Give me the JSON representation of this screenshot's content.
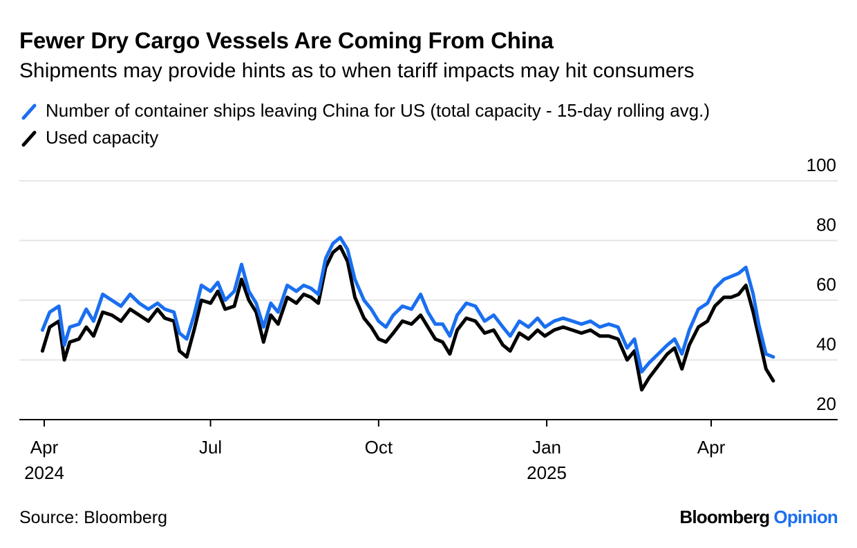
{
  "chart_data": {
    "type": "line",
    "title": "Fewer Dry Cargo Vessels Are Coming From China",
    "subtitle": "Shipments may provide hints as to when tariff impacts may hit consumers",
    "xlabel": "",
    "ylabel": "",
    "ylim": [
      20,
      100
    ],
    "yticks": [
      "100",
      "80",
      "60",
      "40",
      "20"
    ],
    "xticks": [
      {
        "label": "Apr",
        "year": "2024",
        "date": "2024-04-01"
      },
      {
        "label": "Jul",
        "year": "",
        "date": "2024-07-01"
      },
      {
        "label": "Oct",
        "year": "",
        "date": "2024-10-01"
      },
      {
        "label": "Jan",
        "year": "2025",
        "date": "2025-01-01"
      },
      {
        "label": "Apr",
        "year": "",
        "date": "2025-04-01"
      }
    ],
    "grid": true,
    "legend_position": "top-left",
    "series": [
      {
        "name": "Number of container ships leaving China for US (total capacity - 15-day rolling avg.)",
        "color": "#1a6ff0",
        "points": [
          [
            "2024-03-31",
            50
          ],
          [
            "2024-04-04",
            56
          ],
          [
            "2024-04-09",
            58
          ],
          [
            "2024-04-12",
            45
          ],
          [
            "2024-04-15",
            51
          ],
          [
            "2024-04-20",
            52
          ],
          [
            "2024-04-24",
            57
          ],
          [
            "2024-04-28",
            53
          ],
          [
            "2024-05-03",
            62
          ],
          [
            "2024-05-08",
            60
          ],
          [
            "2024-05-13",
            58
          ],
          [
            "2024-05-18",
            62
          ],
          [
            "2024-05-23",
            59
          ],
          [
            "2024-05-28",
            57
          ],
          [
            "2024-06-02",
            59
          ],
          [
            "2024-06-06",
            57
          ],
          [
            "2024-06-11",
            56
          ],
          [
            "2024-06-14",
            49
          ],
          [
            "2024-06-18",
            47
          ],
          [
            "2024-06-22",
            55
          ],
          [
            "2024-06-26",
            65
          ],
          [
            "2024-07-01",
            63
          ],
          [
            "2024-07-05",
            66
          ],
          [
            "2024-07-09",
            60
          ],
          [
            "2024-07-14",
            63
          ],
          [
            "2024-07-18",
            72
          ],
          [
            "2024-07-22",
            63
          ],
          [
            "2024-07-26",
            59
          ],
          [
            "2024-07-30",
            51
          ],
          [
            "2024-08-03",
            59
          ],
          [
            "2024-08-07",
            56
          ],
          [
            "2024-08-12",
            65
          ],
          [
            "2024-08-17",
            63
          ],
          [
            "2024-08-21",
            65
          ],
          [
            "2024-08-25",
            64
          ],
          [
            "2024-08-29",
            62
          ],
          [
            "2024-09-02",
            74
          ],
          [
            "2024-09-06",
            79
          ],
          [
            "2024-09-10",
            81
          ],
          [
            "2024-09-14",
            77
          ],
          [
            "2024-09-18",
            67
          ],
          [
            "2024-09-23",
            60
          ],
          [
            "2024-09-27",
            57
          ],
          [
            "2024-10-01",
            53
          ],
          [
            "2024-10-05",
            51
          ],
          [
            "2024-10-09",
            55
          ],
          [
            "2024-10-14",
            58
          ],
          [
            "2024-10-19",
            57
          ],
          [
            "2024-10-24",
            62
          ],
          [
            "2024-10-28",
            56
          ],
          [
            "2024-11-01",
            52
          ],
          [
            "2024-11-05",
            52
          ],
          [
            "2024-11-09",
            48
          ],
          [
            "2024-11-13",
            55
          ],
          [
            "2024-11-18",
            59
          ],
          [
            "2024-11-23",
            58
          ],
          [
            "2024-11-28",
            53
          ],
          [
            "2024-12-03",
            55
          ],
          [
            "2024-12-08",
            51
          ],
          [
            "2024-12-12",
            48
          ],
          [
            "2024-12-17",
            53
          ],
          [
            "2024-12-22",
            51
          ],
          [
            "2024-12-27",
            54
          ],
          [
            "2024-12-31",
            51
          ],
          [
            "2025-01-05",
            53
          ],
          [
            "2025-01-10",
            54
          ],
          [
            "2025-01-15",
            53
          ],
          [
            "2025-01-20",
            52
          ],
          [
            "2025-01-25",
            53
          ],
          [
            "2025-01-30",
            51
          ],
          [
            "2025-02-04",
            52
          ],
          [
            "2025-02-09",
            51
          ],
          [
            "2025-02-14",
            44
          ],
          [
            "2025-02-18",
            47
          ],
          [
            "2025-02-22",
            36
          ],
          [
            "2025-02-26",
            39
          ],
          [
            "2025-03-03",
            42
          ],
          [
            "2025-03-08",
            45
          ],
          [
            "2025-03-12",
            47
          ],
          [
            "2025-03-16",
            42
          ],
          [
            "2025-03-20",
            50
          ],
          [
            "2025-03-25",
            57
          ],
          [
            "2025-03-30",
            59
          ],
          [
            "2025-04-03",
            64
          ],
          [
            "2025-04-08",
            67
          ],
          [
            "2025-04-12",
            68
          ],
          [
            "2025-04-16",
            69
          ],
          [
            "2025-04-20",
            71
          ],
          [
            "2025-04-24",
            62
          ],
          [
            "2025-04-27",
            52
          ],
          [
            "2025-05-01",
            42
          ],
          [
            "2025-05-05",
            41
          ]
        ]
      },
      {
        "name": "Used capacity",
        "color": "#000000",
        "points": [
          [
            "2024-03-31",
            43
          ],
          [
            "2024-04-04",
            51
          ],
          [
            "2024-04-09",
            53
          ],
          [
            "2024-04-12",
            40
          ],
          [
            "2024-04-15",
            46
          ],
          [
            "2024-04-20",
            47
          ],
          [
            "2024-04-24",
            51
          ],
          [
            "2024-04-28",
            48
          ],
          [
            "2024-05-03",
            56
          ],
          [
            "2024-05-08",
            55
          ],
          [
            "2024-05-13",
            53
          ],
          [
            "2024-05-18",
            57
          ],
          [
            "2024-05-23",
            55
          ],
          [
            "2024-05-28",
            53
          ],
          [
            "2024-06-02",
            57
          ],
          [
            "2024-06-06",
            54
          ],
          [
            "2024-06-11",
            53
          ],
          [
            "2024-06-14",
            43
          ],
          [
            "2024-06-18",
            41
          ],
          [
            "2024-06-22",
            50
          ],
          [
            "2024-06-26",
            60
          ],
          [
            "2024-07-01",
            59
          ],
          [
            "2024-07-05",
            63
          ],
          [
            "2024-07-09",
            57
          ],
          [
            "2024-07-14",
            58
          ],
          [
            "2024-07-18",
            67
          ],
          [
            "2024-07-22",
            60
          ],
          [
            "2024-07-26",
            56
          ],
          [
            "2024-07-30",
            46
          ],
          [
            "2024-08-03",
            55
          ],
          [
            "2024-08-07",
            52
          ],
          [
            "2024-08-12",
            61
          ],
          [
            "2024-08-17",
            59
          ],
          [
            "2024-08-21",
            62
          ],
          [
            "2024-08-25",
            61
          ],
          [
            "2024-08-29",
            59
          ],
          [
            "2024-09-02",
            71
          ],
          [
            "2024-09-06",
            76
          ],
          [
            "2024-09-10",
            78
          ],
          [
            "2024-09-14",
            73
          ],
          [
            "2024-09-18",
            61
          ],
          [
            "2024-09-23",
            54
          ],
          [
            "2024-09-27",
            51
          ],
          [
            "2024-10-01",
            47
          ],
          [
            "2024-10-05",
            46
          ],
          [
            "2024-10-09",
            49
          ],
          [
            "2024-10-14",
            53
          ],
          [
            "2024-10-19",
            52
          ],
          [
            "2024-10-24",
            55
          ],
          [
            "2024-10-28",
            51
          ],
          [
            "2024-11-01",
            47
          ],
          [
            "2024-11-05",
            46
          ],
          [
            "2024-11-09",
            42
          ],
          [
            "2024-11-13",
            50
          ],
          [
            "2024-11-18",
            54
          ],
          [
            "2024-11-23",
            53
          ],
          [
            "2024-11-28",
            49
          ],
          [
            "2024-12-03",
            50
          ],
          [
            "2024-12-08",
            45
          ],
          [
            "2024-12-12",
            43
          ],
          [
            "2024-12-17",
            49
          ],
          [
            "2024-12-22",
            47
          ],
          [
            "2024-12-27",
            50
          ],
          [
            "2024-12-31",
            48
          ],
          [
            "2025-01-05",
            50
          ],
          [
            "2025-01-10",
            51
          ],
          [
            "2025-01-15",
            50
          ],
          [
            "2025-01-20",
            49
          ],
          [
            "2025-01-25",
            50
          ],
          [
            "2025-01-30",
            48
          ],
          [
            "2025-02-04",
            48
          ],
          [
            "2025-02-09",
            47
          ],
          [
            "2025-02-14",
            40
          ],
          [
            "2025-02-18",
            43
          ],
          [
            "2025-02-22",
            30
          ],
          [
            "2025-02-26",
            34
          ],
          [
            "2025-03-03",
            38
          ],
          [
            "2025-03-08",
            42
          ],
          [
            "2025-03-12",
            44
          ],
          [
            "2025-03-16",
            37
          ],
          [
            "2025-03-20",
            45
          ],
          [
            "2025-03-25",
            51
          ],
          [
            "2025-03-30",
            53
          ],
          [
            "2025-04-03",
            58
          ],
          [
            "2025-04-08",
            61
          ],
          [
            "2025-04-12",
            61
          ],
          [
            "2025-04-16",
            62
          ],
          [
            "2025-04-20",
            65
          ],
          [
            "2025-04-24",
            56
          ],
          [
            "2025-04-27",
            48
          ],
          [
            "2025-05-01",
            37
          ],
          [
            "2025-05-05",
            33
          ]
        ]
      }
    ]
  },
  "source": "Source: Bloomberg",
  "brand": {
    "name": "Bloomberg",
    "suffix": "Opinion",
    "suffix_color": "#1a6ff0"
  }
}
